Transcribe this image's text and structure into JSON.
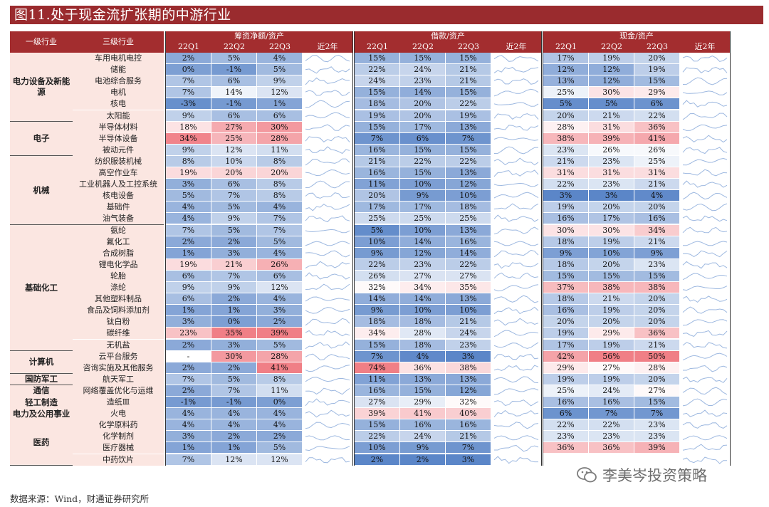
{
  "title": "图11.处于现金流扩张期的中游行业",
  "footer": "数据来源：Wind，财通证券研究所",
  "watermark": "李美岑投资策略",
  "headers": {
    "level1": "一级行业",
    "level3": "三级行业",
    "groups": [
      "筹资净额/资产",
      "借款/资产",
      "现金/资产"
    ],
    "sub": [
      "22Q1",
      "22Q2",
      "22Q3",
      "近2年"
    ]
  },
  "colors": {
    "header": "#a32d2f",
    "label_bg": "#fbe6e1",
    "pos": "#f07f86",
    "neg": "#5b86c8"
  },
  "categories": [
    {
      "name": "电力设备及新能源",
      "start": 0,
      "count": 6
    },
    {
      "name": "电子",
      "start": 6,
      "count": 3
    },
    {
      "name": "机械",
      "start": 9,
      "count": 6
    },
    {
      "name": "基础化工",
      "start": 15,
      "count": 11
    },
    {
      "name": "计算机",
      "start": 26,
      "count": 2
    },
    {
      "name": "国防军工",
      "start": 28,
      "count": 1
    },
    {
      "name": "通信",
      "start": 29,
      "count": 1
    },
    {
      "name": "轻工制造",
      "start": 30,
      "count": 1
    },
    {
      "name": "电力及公用事业",
      "start": 31,
      "count": 1
    },
    {
      "name": "医药",
      "start": 32,
      "count": 4
    }
  ],
  "rows": [
    {
      "name": "车用电机电控",
      "v": [
        [
          "2%",
          "5%",
          "4%"
        ],
        [
          "15%",
          "15%",
          "15%"
        ],
        [
          "17%",
          "19%",
          "20%"
        ]
      ]
    },
    {
      "name": "储能",
      "v": [
        [
          "0%",
          "-1%",
          "5%"
        ],
        [
          "22%",
          "24%",
          "21%"
        ],
        [
          "12%",
          "12%",
          "19%"
        ]
      ]
    },
    {
      "name": "电池综合服务",
      "v": [
        [
          "7%",
          "6%",
          "9%"
        ],
        [
          "24%",
          "23%",
          "21%"
        ],
        [
          "13%",
          "12%",
          "15%"
        ]
      ]
    },
    {
      "name": "电机",
      "v": [
        [
          "7%",
          "14%",
          "12%"
        ],
        [
          "15%",
          "14%",
          "15%"
        ],
        [
          "25%",
          "30%",
          "29%"
        ]
      ]
    },
    {
      "name": "核电",
      "v": [
        [
          "-3%",
          "-1%",
          "1%"
        ],
        [
          "18%",
          "20%",
          "22%"
        ],
        [
          "5%",
          "5%",
          "6%"
        ]
      ]
    },
    {
      "name": "太阳能",
      "v": [
        [
          "9%",
          "6%",
          "6%"
        ],
        [
          "19%",
          "20%",
          "19%"
        ],
        [
          "20%",
          "21%",
          "22%"
        ]
      ]
    },
    {
      "name": "半导体材料",
      "v": [
        [
          "18%",
          "27%",
          "30%"
        ],
        [
          "15%",
          "17%",
          "13%"
        ],
        [
          "28%",
          "31%",
          "36%"
        ]
      ]
    },
    {
      "name": "半导体设备",
      "v": [
        [
          "34%",
          "25%",
          "28%"
        ],
        [
          "7%",
          "6%",
          "7%"
        ],
        [
          "38%",
          "39%",
          "41%"
        ]
      ]
    },
    {
      "name": "被动元件",
      "v": [
        [
          "9%",
          "12%",
          "11%"
        ],
        [
          "16%",
          "15%",
          "15%"
        ],
        [
          "23%",
          "26%",
          "26%"
        ]
      ]
    },
    {
      "name": "纺织服装机械",
      "v": [
        [
          "8%",
          "10%",
          "8%"
        ],
        [
          "21%",
          "22%",
          "22%"
        ],
        [
          "21%",
          "23%",
          "25%"
        ]
      ]
    },
    {
      "name": "高空作业车",
      "v": [
        [
          "19%",
          "20%",
          "20%"
        ],
        [
          "16%",
          "15%",
          "13%"
        ],
        [
          "31%",
          "31%",
          "31%"
        ]
      ]
    },
    {
      "name": "工业机器人及工控系统",
      "v": [
        [
          "3%",
          "6%",
          "8%"
        ],
        [
          "11%",
          "10%",
          "12%"
        ],
        [
          "22%",
          "23%",
          "21%"
        ]
      ]
    },
    {
      "name": "核电设备",
      "v": [
        [
          "5%",
          "7%",
          "8%"
        ],
        [
          "20%",
          "9%",
          "10%"
        ],
        [
          "3%",
          "3%",
          "4%"
        ]
      ]
    },
    {
      "name": "基础件",
      "v": [
        [
          "4%",
          "5%",
          "4%"
        ],
        [
          "17%",
          "17%",
          "18%"
        ],
        [
          "19%",
          "20%",
          "20%"
        ]
      ]
    },
    {
      "name": "油气装备",
      "v": [
        [
          "4%",
          "9%",
          "7%"
        ],
        [
          "25%",
          "25%",
          "25%"
        ],
        [
          "16%",
          "17%",
          "16%"
        ]
      ]
    },
    {
      "name": "氨纶",
      "v": [
        [
          "7%",
          "5%",
          "7%"
        ],
        [
          "5%",
          "10%",
          "13%"
        ],
        [
          "30%",
          "30%",
          "34%"
        ]
      ]
    },
    {
      "name": "氟化工",
      "v": [
        [
          "2%",
          "2%",
          "5%"
        ],
        [
          "10%",
          "14%",
          "16%"
        ],
        [
          "18%",
          "19%",
          "21%"
        ]
      ]
    },
    {
      "name": "合成树脂",
      "v": [
        [
          "1%",
          "3%",
          "4%"
        ],
        [
          "9%",
          "12%",
          "14%"
        ],
        [
          "9%",
          "10%",
          "9%"
        ]
      ]
    },
    {
      "name": "锂电化学品",
      "v": [
        [
          "19%",
          "21%",
          "26%"
        ],
        [
          "22%",
          "23%",
          "22%"
        ],
        [
          "18%",
          "20%",
          "23%"
        ]
      ]
    },
    {
      "name": "轮胎",
      "v": [
        [
          "6%",
          "7%",
          "6%"
        ],
        [
          "26%",
          "27%",
          "27%"
        ],
        [
          "15%",
          "15%",
          "15%"
        ]
      ]
    },
    {
      "name": "涤纶",
      "v": [
        [
          "9%",
          "9%",
          "12%"
        ],
        [
          "32%",
          "34%",
          "35%"
        ],
        [
          "37%",
          "38%",
          "38%"
        ]
      ]
    },
    {
      "name": "其他塑料制品",
      "v": [
        [
          "6%",
          "2%",
          "4%"
        ],
        [
          "14%",
          "14%",
          "13%"
        ],
        [
          "18%",
          "21%",
          "20%"
        ]
      ]
    },
    {
      "name": "食品及饲料添加剂",
      "v": [
        [
          "1%",
          "1%",
          "3%"
        ],
        [
          "9%",
          "10%",
          "10%"
        ],
        [
          "16%",
          "19%",
          "20%"
        ]
      ]
    },
    {
      "name": "钛白粉",
      "v": [
        [
          "3%",
          "0%",
          "2%"
        ],
        [
          "18%",
          "18%",
          "21%"
        ],
        [
          "20%",
          "20%",
          "20%"
        ]
      ]
    },
    {
      "name": "碳纤维",
      "v": [
        [
          "23%",
          "35%",
          "39%"
        ],
        [
          "34%",
          "28%",
          "24%"
        ],
        [
          "19%",
          "29%",
          "36%"
        ]
      ]
    },
    {
      "name": "无机盐",
      "v": [
        [
          "2%",
          "3%",
          "5%"
        ],
        [
          "15%",
          "18%",
          "23%"
        ],
        [
          "17%",
          "19%",
          "21%"
        ]
      ]
    },
    {
      "name": "云平台服务",
      "v": [
        [
          "-",
          "30%",
          "28%"
        ],
        [
          "7%",
          "4%",
          "3%"
        ],
        [
          "42%",
          "56%",
          "50%"
        ]
      ]
    },
    {
      "name": "咨询实施及其他服务",
      "v": [
        [
          "2%",
          "2%",
          "41%"
        ],
        [
          "74%",
          "36%",
          "38%"
        ],
        [
          "29%",
          "27%",
          "28%"
        ]
      ]
    },
    {
      "name": "航天军工",
      "v": [
        [
          "7%",
          "5%",
          "8%"
        ],
        [
          "11%",
          "13%",
          "13%"
        ],
        [
          "19%",
          "19%",
          "20%"
        ]
      ]
    },
    {
      "name": "网络覆盖优化与运维",
      "v": [
        [
          "2%",
          "7%",
          "11%"
        ],
        [
          "16%",
          "15%",
          "12%"
        ],
        [
          "25%",
          "24%",
          "27%"
        ]
      ]
    },
    {
      "name": "造纸Ⅲ",
      "v": [
        [
          "-1%",
          "-1%",
          "0%"
        ],
        [
          "27%",
          "29%",
          "32%"
        ],
        [
          "16%",
          "16%",
          "15%"
        ]
      ]
    },
    {
      "name": "火电",
      "v": [
        [
          "4%",
          "4%",
          "4%"
        ],
        [
          "39%",
          "41%",
          "40%"
        ],
        [
          "6%",
          "7%",
          "7%"
        ]
      ]
    },
    {
      "name": "化学原料药",
      "v": [
        [
          "4%",
          "4%",
          "4%"
        ],
        [
          "15%",
          "16%",
          "16%"
        ],
        [
          "22%",
          "22%",
          "23%"
        ]
      ]
    },
    {
      "name": "化学制剂",
      "v": [
        [
          "3%",
          "2%",
          "2%"
        ],
        [
          "22%",
          "24%",
          "21%"
        ],
        [
          "23%",
          "23%",
          "23%"
        ]
      ]
    },
    {
      "name": "医疗器械",
      "v": [
        [
          "1%",
          "1%",
          "5%"
        ],
        [
          "10%",
          "9%",
          "7%"
        ],
        [
          "36%",
          "36%",
          "39%"
        ]
      ]
    },
    {
      "name": "中药饮片",
      "v": [
        [
          "7%",
          "12%",
          "12%"
        ],
        [
          "2%",
          "2%",
          "3%"
        ],
        [
          "",
          "",
          ""
        ]
      ]
    }
  ]
}
